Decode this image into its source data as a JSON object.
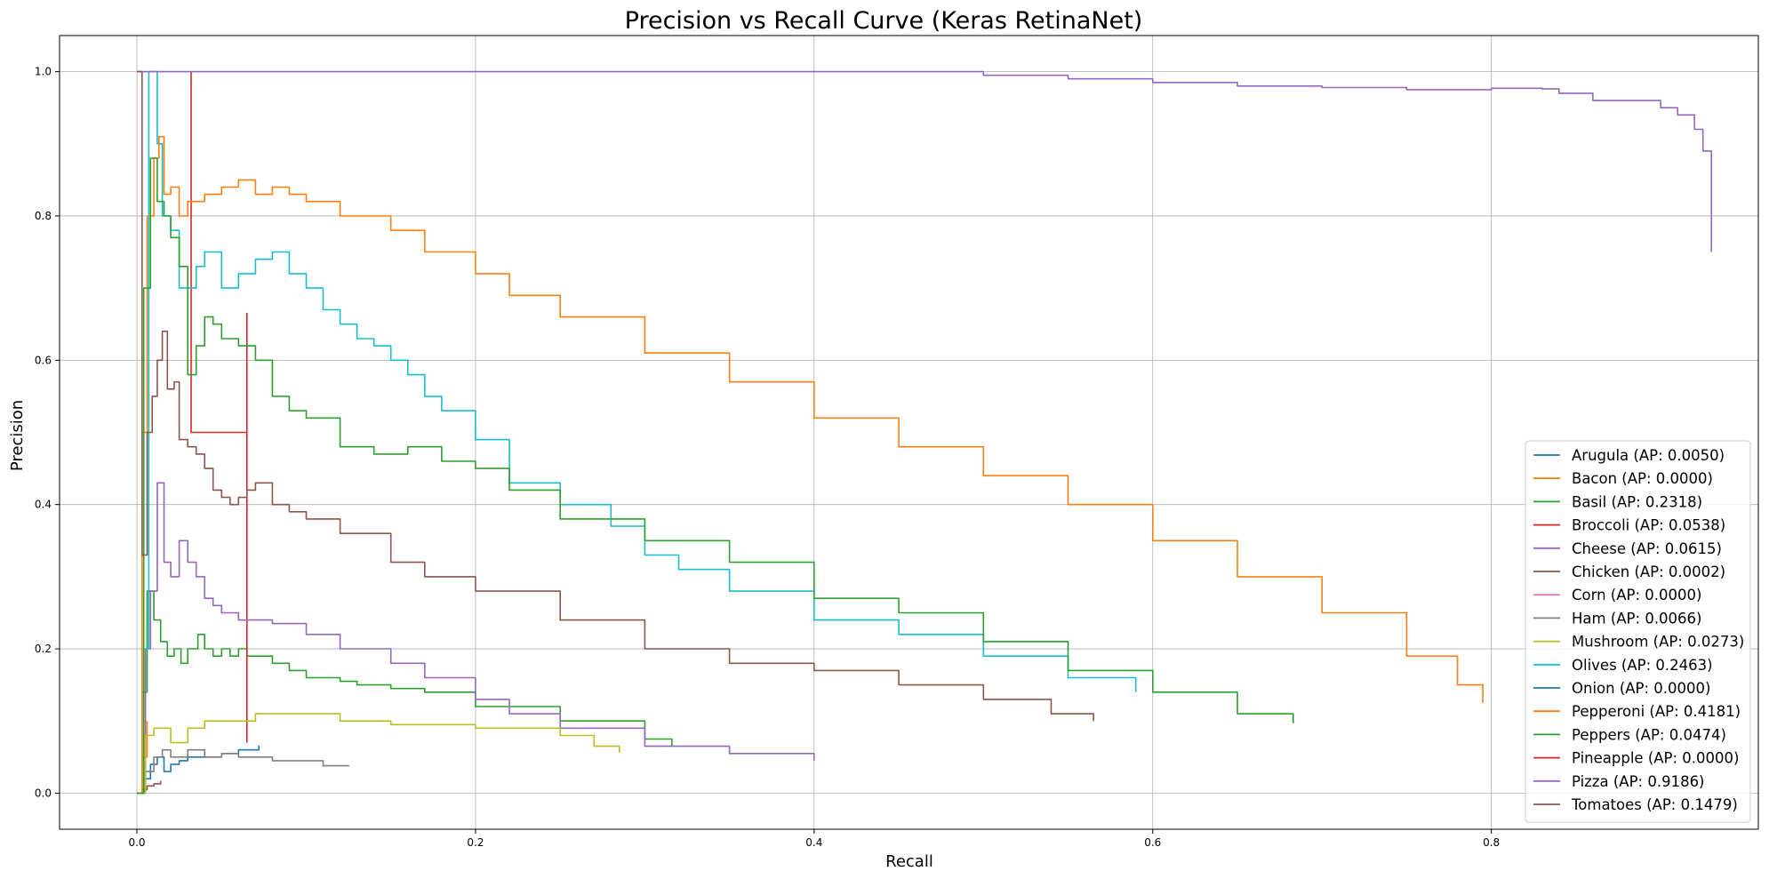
{
  "chart_data": {
    "type": "line",
    "title": "Precision vs Recall Curve (Keras RetinaNet)",
    "xlabel": "Recall",
    "ylabel": "Precision",
    "xlim": [
      -0.0457,
      0.9577
    ],
    "ylim": [
      -0.05,
      1.05
    ],
    "xticks": [
      0.0,
      0.2,
      0.4,
      0.6,
      0.8
    ],
    "xtick_labels": [
      "0.0",
      "0.2",
      "0.4",
      "0.6",
      "0.8"
    ],
    "yticks": [
      0.0,
      0.2,
      0.4,
      0.6,
      0.8,
      1.0
    ],
    "ytick_labels": [
      "0.0",
      "0.2",
      "0.4",
      "0.6",
      "0.8",
      "1.0"
    ],
    "grid": true,
    "legend_position": "lower-right",
    "series": [
      {
        "name": "Arugula (AP: 0.0050)",
        "color": "#1f77b4",
        "x": [
          0.0,
          0.004,
          0.008,
          0.012,
          0.016,
          0.02,
          0.025,
          0.03,
          0.04,
          0.05,
          0.06,
          0.072
        ],
        "y": [
          0.0,
          0.02,
          0.04,
          0.05,
          0.03,
          0.04,
          0.045,
          0.05,
          0.05,
          0.055,
          0.06,
          0.066
        ]
      },
      {
        "name": "Bacon (AP: 0.0000)",
        "color": "#ff7f0e",
        "x": [
          0.0,
          0.003,
          0.006
        ],
        "y": [
          0.0,
          0.05,
          0.1
        ]
      },
      {
        "name": "Basil (AP: 0.2318)",
        "color": "#2ca02c",
        "x": [
          0.0,
          0.003,
          0.006,
          0.01,
          0.014,
          0.018,
          0.022,
          0.026,
          0.03,
          0.036,
          0.04,
          0.045,
          0.05,
          0.055,
          0.06,
          0.065,
          0.07,
          0.08,
          0.09,
          0.1,
          0.11,
          0.12,
          0.13,
          0.15,
          0.17,
          0.2,
          0.25,
          0.3,
          0.316
        ],
        "y": [
          0.0,
          0.14,
          0.28,
          0.24,
          0.21,
          0.19,
          0.2,
          0.18,
          0.2,
          0.22,
          0.2,
          0.19,
          0.2,
          0.19,
          0.2,
          0.19,
          0.19,
          0.18,
          0.17,
          0.16,
          0.16,
          0.155,
          0.15,
          0.145,
          0.14,
          0.12,
          0.1,
          0.075,
          0.065
        ]
      },
      {
        "name": "Broccoli (AP: 0.0538)",
        "color": "#d62728",
        "x": [
          0.032,
          0.032,
          0.032,
          0.065,
          0.065
        ],
        "y": [
          1.0,
          0.8,
          0.5,
          0.665,
          0.07
        ]
      },
      {
        "name": "Cheese (AP: 0.0615)",
        "color": "#9467bd",
        "x": [
          0.0,
          0.005,
          0.008,
          0.012,
          0.016,
          0.02,
          0.025,
          0.03,
          0.035,
          0.04,
          0.045,
          0.05,
          0.06,
          0.07,
          0.08,
          0.1,
          0.12,
          0.15,
          0.17,
          0.2,
          0.22,
          0.25,
          0.3,
          0.35,
          0.4
        ],
        "y": [
          0.0,
          0.2,
          0.28,
          0.43,
          0.32,
          0.3,
          0.35,
          0.32,
          0.3,
          0.27,
          0.26,
          0.25,
          0.24,
          0.24,
          0.235,
          0.22,
          0.2,
          0.18,
          0.16,
          0.13,
          0.11,
          0.09,
          0.065,
          0.055,
          0.045
        ]
      },
      {
        "name": "Chicken (AP: 0.0002)",
        "color": "#8c564b",
        "x": [
          0.0,
          0.003,
          0.006,
          0.01,
          0.014
        ],
        "y": [
          0.0,
          0.005,
          0.01,
          0.013,
          0.017
        ]
      },
      {
        "name": "Corn (AP: 0.0000)",
        "color": "#e377c2",
        "x": [],
        "y": []
      },
      {
        "name": "Ham (AP: 0.0066)",
        "color": "#7f7f7f",
        "x": [
          0.0,
          0.005,
          0.01,
          0.015,
          0.02,
          0.03,
          0.04,
          0.05,
          0.06,
          0.08,
          0.1,
          0.11,
          0.125
        ],
        "y": [
          0.0,
          0.03,
          0.05,
          0.06,
          0.05,
          0.06,
          0.05,
          0.055,
          0.05,
          0.045,
          0.045,
          0.038,
          0.037
        ]
      },
      {
        "name": "Mushroom (AP: 0.0273)",
        "color": "#bcbd22",
        "x": [
          0.0,
          0.005,
          0.01,
          0.015,
          0.02,
          0.03,
          0.04,
          0.05,
          0.07,
          0.09,
          0.12,
          0.15,
          0.2,
          0.25,
          0.27,
          0.285
        ],
        "y": [
          0.0,
          0.08,
          0.09,
          0.09,
          0.07,
          0.09,
          0.1,
          0.1,
          0.11,
          0.11,
          0.1,
          0.095,
          0.09,
          0.08,
          0.065,
          0.056
        ]
      },
      {
        "name": "Olives (AP: 0.2463)",
        "color": "#17becf",
        "x": [
          0.0,
          0.004,
          0.007,
          0.009,
          0.012,
          0.015,
          0.02,
          0.025,
          0.03,
          0.035,
          0.04,
          0.05,
          0.06,
          0.07,
          0.08,
          0.09,
          0.1,
          0.11,
          0.12,
          0.13,
          0.14,
          0.15,
          0.16,
          0.17,
          0.18,
          0.2,
          0.22,
          0.25,
          0.28,
          0.3,
          0.32,
          0.35,
          0.4,
          0.45,
          0.5,
          0.55,
          0.59
        ],
        "y": [
          0.0,
          0.2,
          1.0,
          1.0,
          0.9,
          0.8,
          0.78,
          0.7,
          0.7,
          0.73,
          0.75,
          0.7,
          0.72,
          0.74,
          0.75,
          0.72,
          0.7,
          0.67,
          0.65,
          0.63,
          0.62,
          0.6,
          0.58,
          0.55,
          0.53,
          0.49,
          0.43,
          0.4,
          0.37,
          0.33,
          0.31,
          0.28,
          0.24,
          0.22,
          0.19,
          0.16,
          0.14
        ]
      },
      {
        "name": "Onion (AP: 0.0000)",
        "color": "#1f77b4",
        "x": [],
        "y": []
      },
      {
        "name": "Pepperoni (AP: 0.4181)",
        "color": "#ff7f0e",
        "x": [
          0.0,
          0.003,
          0.006,
          0.01,
          0.013,
          0.016,
          0.02,
          0.025,
          0.03,
          0.04,
          0.05,
          0.06,
          0.07,
          0.08,
          0.09,
          0.1,
          0.12,
          0.14,
          0.15,
          0.17,
          0.2,
          0.22,
          0.25,
          0.3,
          0.35,
          0.4,
          0.45,
          0.5,
          0.55,
          0.6,
          0.65,
          0.7,
          0.75,
          0.78,
          0.795
        ],
        "y": [
          0.0,
          0.5,
          0.8,
          0.88,
          0.91,
          0.83,
          0.84,
          0.8,
          0.82,
          0.83,
          0.84,
          0.85,
          0.83,
          0.84,
          0.83,
          0.82,
          0.8,
          0.8,
          0.78,
          0.75,
          0.72,
          0.69,
          0.66,
          0.61,
          0.57,
          0.52,
          0.48,
          0.44,
          0.4,
          0.35,
          0.3,
          0.25,
          0.19,
          0.15,
          0.125
        ]
      },
      {
        "name": "Peppers (AP: 0.0474)",
        "color": "#2ca02c",
        "x": [
          0.0,
          0.004,
          0.008,
          0.012,
          0.016,
          0.02,
          0.025,
          0.03,
          0.035,
          0.04,
          0.045,
          0.05,
          0.06,
          0.07,
          0.08,
          0.09,
          0.1,
          0.12,
          0.14,
          0.16,
          0.18,
          0.2,
          0.22,
          0.25,
          0.3,
          0.35,
          0.4,
          0.45,
          0.5,
          0.55,
          0.6,
          0.65,
          0.683
        ],
        "y": [
          0.0,
          0.7,
          0.88,
          0.82,
          0.8,
          0.77,
          0.73,
          0.58,
          0.62,
          0.66,
          0.65,
          0.63,
          0.62,
          0.6,
          0.55,
          0.53,
          0.52,
          0.48,
          0.47,
          0.48,
          0.46,
          0.45,
          0.42,
          0.38,
          0.35,
          0.32,
          0.27,
          0.25,
          0.21,
          0.17,
          0.14,
          0.11,
          0.097
        ]
      },
      {
        "name": "Pineapple (AP: 0.0000)",
        "color": "#d62728",
        "x": [],
        "y": []
      },
      {
        "name": "Pizza (AP: 0.9186)",
        "color": "#9467bd",
        "x": [
          0.0,
          0.003,
          0.25,
          0.46,
          0.5,
          0.55,
          0.6,
          0.65,
          0.7,
          0.75,
          0.8,
          0.83,
          0.84,
          0.86,
          0.88,
          0.9,
          0.91,
          0.92,
          0.925,
          0.93,
          0.93
        ],
        "y": [
          1.0,
          1.0,
          1.0,
          1.0,
          0.995,
          0.99,
          0.985,
          0.98,
          0.978,
          0.975,
          0.977,
          0.976,
          0.97,
          0.96,
          0.96,
          0.95,
          0.94,
          0.92,
          0.89,
          0.86,
          0.75
        ]
      },
      {
        "name": "Tomatoes (AP: 0.1479)",
        "color": "#8c564b",
        "x": [
          0.0,
          0.003,
          0.006,
          0.009,
          0.012,
          0.015,
          0.018,
          0.022,
          0.025,
          0.03,
          0.035,
          0.04,
          0.045,
          0.05,
          0.055,
          0.06,
          0.065,
          0.07,
          0.08,
          0.09,
          0.1,
          0.12,
          0.15,
          0.17,
          0.2,
          0.25,
          0.3,
          0.35,
          0.4,
          0.45,
          0.5,
          0.54,
          0.565
        ],
        "y": [
          1.0,
          0.33,
          0.5,
          0.55,
          0.6,
          0.64,
          0.56,
          0.57,
          0.49,
          0.48,
          0.47,
          0.45,
          0.42,
          0.41,
          0.4,
          0.41,
          0.42,
          0.43,
          0.4,
          0.39,
          0.38,
          0.36,
          0.32,
          0.3,
          0.28,
          0.24,
          0.2,
          0.18,
          0.17,
          0.15,
          0.13,
          0.11,
          0.1
        ]
      }
    ]
  }
}
